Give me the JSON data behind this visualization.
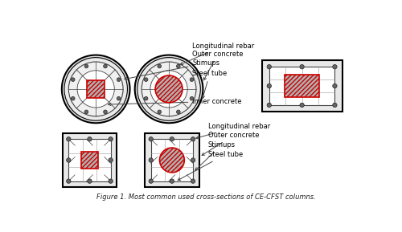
{
  "white": "#ffffff",
  "black": "#000000",
  "dark_gray": "#444444",
  "mid_gray": "#888888",
  "light_gray": "#cccccc",
  "rebar_color": "#666666",
  "red_border": "#cc0000",
  "concrete_fill": "#b0b0b0",
  "outer_fill": "#d8d8d8",
  "labels_top": [
    "Longitudinal rebar",
    "Outer concrete",
    "Stimups",
    "Steel tube",
    "Inner concrete"
  ],
  "labels_bottom": [
    "Longitudinal rebar",
    "Outer concrete",
    "Stimups",
    "Steel tube"
  ],
  "font_size": 6.0,
  "title": "Figure 1. Most common used cross-sections of CE-CFST columns."
}
